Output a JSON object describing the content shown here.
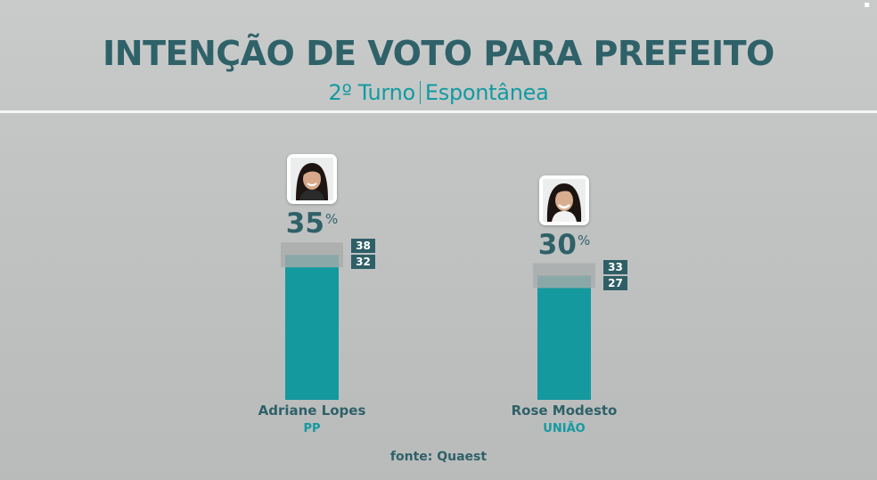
{
  "header": {
    "title": "INTENÇÃO DE VOTO PARA PREFEITO",
    "subtitle_left": "2º Turno",
    "subtitle_right": "Espontânea"
  },
  "corner_mark": "▪",
  "source": "fonte: Quaest",
  "percent_symbol": "%",
  "colors": {
    "bar": "#14999e",
    "range": "#a9abab",
    "dark": "#2f6168",
    "accent": "#139aa0"
  },
  "chart_data": {
    "type": "bar",
    "title": "INTENÇÃO DE VOTO PARA PREFEITO",
    "subtitle": "2º Turno | Espontânea",
    "categories": [
      "Adriane Lopes",
      "Rose Modesto"
    ],
    "parties": [
      "PP",
      "UNIÃO"
    ],
    "values": [
      35,
      30
    ],
    "upper": [
      38,
      33
    ],
    "lower": [
      32,
      27
    ],
    "unit": "%",
    "ylim": [
      0,
      50
    ],
    "grid": false,
    "legend": "none"
  },
  "candidates": [
    {
      "name": "Adriane Lopes",
      "party": "PP",
      "value": "35",
      "upper": "38",
      "lower": "32",
      "avatar_icon": "candidate-photo-icon"
    },
    {
      "name": "Rose Modesto",
      "party": "UNIÃO",
      "value": "30",
      "upper": "33",
      "lower": "27",
      "avatar_icon": "candidate-photo-icon"
    }
  ]
}
